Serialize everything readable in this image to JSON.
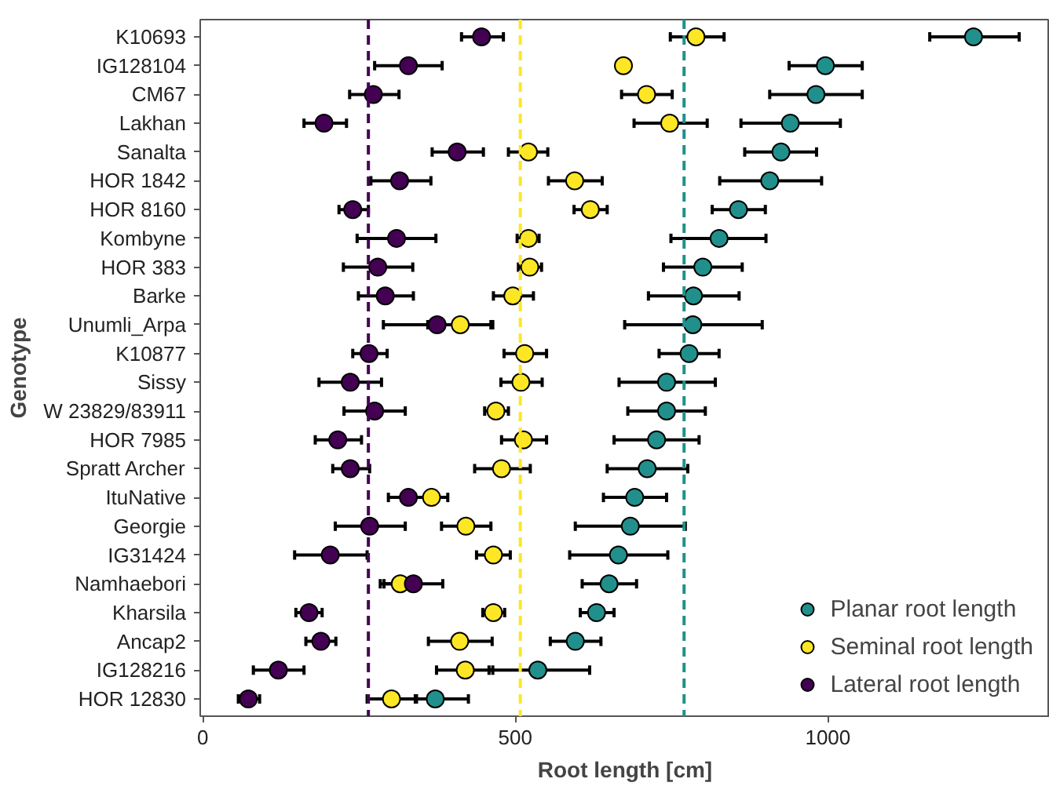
{
  "chart_data": {
    "type": "scatter",
    "orientation": "horizontal",
    "xlabel": "Root length [cm]",
    "ylabel": "Genotype",
    "categories": [
      "K10693",
      "IG128104",
      "CM67",
      "Lakhan",
      "Sanalta",
      "HOR 1842",
      "HOR 8160",
      "Kombyne",
      "HOR 383",
      "Barke",
      "Unumli_Arpa",
      "K10877",
      "Sissy",
      "W 23829/83911",
      "HOR 7985",
      "Spratt Archer",
      "ItuNative",
      "Georgie",
      "IG31424",
      "Namhaebori",
      "Kharsila",
      "Ancap2",
      "IG128216",
      "HOR 12830"
    ],
    "series": [
      {
        "name": "Planar root length",
        "color": "#21908c",
        "values": [
          1233,
          996,
          981,
          940,
          925,
          907,
          857,
          826,
          800,
          785,
          784,
          778,
          742,
          742,
          726,
          711,
          691,
          684,
          665,
          650,
          630,
          596,
          536,
          372
        ],
        "errors": [
          [
            1163,
            1306
          ],
          [
            938,
            1055
          ],
          [
            907,
            1055
          ],
          [
            861,
            1020
          ],
          [
            867,
            982
          ],
          [
            827,
            990
          ],
          [
            815,
            900
          ],
          [
            749,
            901
          ],
          [
            737,
            863
          ],
          [
            713,
            858
          ],
          [
            675,
            895
          ],
          [
            730,
            826
          ],
          [
            666,
            820
          ],
          [
            680,
            804
          ],
          [
            658,
            794
          ],
          [
            647,
            776
          ],
          [
            641,
            742
          ],
          [
            596,
            772
          ],
          [
            587,
            744
          ],
          [
            607,
            694
          ],
          [
            604,
            658
          ],
          [
            556,
            637
          ],
          [
            458,
            619
          ],
          [
            340,
            425
          ]
        ]
      },
      {
        "name": "Seminal root length",
        "color": "#fde725",
        "values": [
          789,
          673,
          710,
          747,
          521,
          595,
          620,
          521,
          523,
          496,
          412,
          515,
          509,
          469,
          513,
          478,
          366,
          421,
          465,
          316,
          465,
          411,
          420,
          302
        ],
        "errors": [
          [
            748,
            834
          ],
          null,
          [
            670,
            751
          ],
          [
            690,
            807
          ],
          [
            489,
            552
          ],
          [
            553,
            639
          ],
          [
            594,
            647
          ],
          [
            503,
            538
          ],
          [
            505,
            542
          ],
          [
            465,
            529
          ],
          [
            360,
            464
          ],
          [
            482,
            550
          ],
          [
            477,
            543
          ],
          [
            451,
            489
          ],
          [
            478,
            550
          ],
          [
            435,
            524
          ],
          [
            340,
            392
          ],
          [
            382,
            461
          ],
          [
            438,
            492
          ],
          [
            284,
            348
          ],
          [
            448,
            483
          ],
          [
            361,
            463
          ],
          [
            374,
            464
          ],
          [
            263,
            342
          ]
        ]
      },
      {
        "name": "Lateral root length",
        "color": "#440154",
        "values": [
          446,
          329,
          273,
          194,
          407,
          315,
          240,
          310,
          280,
          292,
          375,
          266,
          236,
          275,
          216,
          236,
          329,
          267,
          204,
          337,
          170,
          189,
          121,
          73
        ],
        "errors": [
          [
            414,
            481
          ],
          [
            275,
            383
          ],
          [
            235,
            314
          ],
          [
            162,
            230
          ],
          [
            367,
            449
          ],
          [
            269,
            365
          ],
          [
            218,
            265
          ],
          [
            247,
            373
          ],
          [
            225,
            336
          ],
          [
            249,
            337
          ],
          [
            289,
            461
          ],
          [
            240,
            295
          ],
          [
            186,
            286
          ],
          [
            226,
            324
          ],
          [
            180,
            254
          ],
          [
            208,
            267
          ],
          [
            297,
            361
          ],
          [
            212,
            324
          ],
          [
            147,
            263
          ],
          [
            290,
            384
          ],
          [
            149,
            191
          ],
          [
            165,
            213
          ],
          [
            81,
            162
          ],
          [
            57,
            91
          ]
        ]
      }
    ],
    "ref_lines": [
      {
        "axis": "x",
        "value": 265,
        "color": "#440154",
        "line_style": "dashed"
      },
      {
        "axis": "x",
        "value": 508,
        "color": "#fde725",
        "line_style": "dashed"
      },
      {
        "axis": "x",
        "value": 770,
        "color": "#21908c",
        "line_style": "dashed"
      }
    ],
    "xlim": [
      -4,
      1355
    ],
    "xticks": [
      0,
      500,
      1000
    ],
    "grid": false,
    "legend": "bottom right",
    "marker": "circle"
  }
}
